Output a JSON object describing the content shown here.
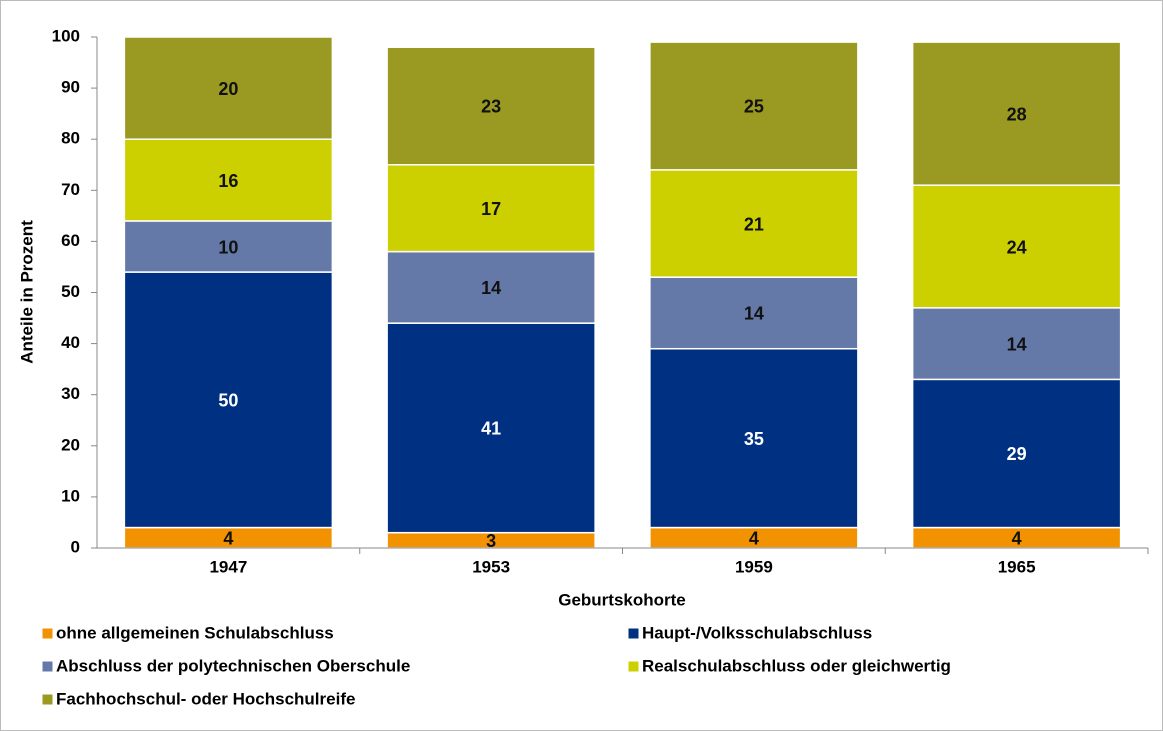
{
  "chart_data": {
    "type": "stacked-bar",
    "x_label": "Geburtskohorte",
    "y_label": "Anteile in Prozent",
    "categories": [
      "1947",
      "1953",
      "1959",
      "1965"
    ],
    "series": [
      {
        "name": "ohne allgemeinen Schulabschluss",
        "color": "#f39200",
        "values": [
          4,
          3,
          4,
          4
        ]
      },
      {
        "name": "Haupt-/Volksschulabschluss",
        "color": "#003082",
        "values": [
          50,
          41,
          35,
          29
        ]
      },
      {
        "name": "Abschluss der polytechnischen Oberschule",
        "color": "#6479a8",
        "values": [
          10,
          14,
          14,
          14
        ]
      },
      {
        "name": "Realschulabschluss oder gleichwertig",
        "color": "#cdd000",
        "values": [
          16,
          17,
          21,
          24
        ]
      },
      {
        "name": "Fachhochschul- oder Hochschulreife",
        "color": "#9a9a22",
        "values": [
          20,
          23,
          25,
          28
        ]
      }
    ],
    "ylim": [
      0,
      100
    ],
    "yticks": [
      0,
      10,
      20,
      30,
      40,
      50,
      60,
      70,
      80,
      90,
      100
    ],
    "grid": false
  }
}
